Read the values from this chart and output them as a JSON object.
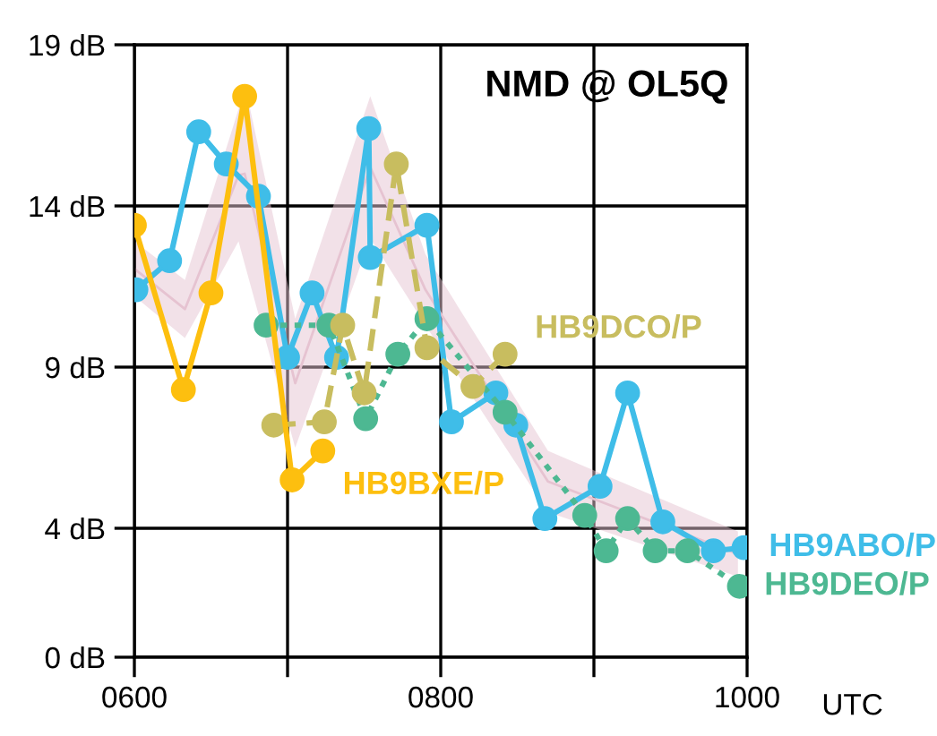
{
  "chart_data": {
    "type": "line",
    "title": "NMD @ OL5Q",
    "xlabel": "UTC",
    "xlim": [
      600,
      1000
    ],
    "xticks": [
      {
        "value": 600,
        "label": "0600"
      },
      {
        "value": 700,
        "label": null
      },
      {
        "value": 800,
        "label": "0800"
      },
      {
        "value": 900,
        "label": null
      },
      {
        "value": 1000,
        "label": "1000"
      }
    ],
    "ylim": [
      0,
      19
    ],
    "yticks": [
      {
        "value": 0,
        "label": "0 dB"
      },
      {
        "value": 4,
        "label": "4 dB"
      },
      {
        "value": 9,
        "label": "9 dB"
      },
      {
        "value": 14,
        "label": "14 dB"
      },
      {
        "value": 19,
        "label": "19 dB"
      }
    ],
    "grid": true,
    "legend": false,
    "marker": "circle",
    "series": [
      {
        "type": "line",
        "color": "#e6c3d1",
        "marker": "none",
        "line_style": "solid",
        "x": [
          600,
          633,
          668,
          672,
          705,
          754,
          790,
          870,
          994
        ],
        "values": [
          12.05,
          10.8,
          14.95,
          15.0,
          8.5,
          15.2,
          11.4,
          5.45,
          3.2
        ],
        "lower": [
          11.2,
          9.9,
          12.9,
          12.2,
          6.5,
          13.0,
          10.3,
          4.5,
          2.5
        ],
        "upper": [
          12.9,
          11.7,
          17.0,
          17.8,
          10.5,
          17.4,
          12.5,
          6.4,
          3.9
        ]
      },
      {
        "name": "HB9ABO/P",
        "color": "#3fbde8",
        "line_style": "solid",
        "x": [
          601,
          623,
          642,
          660,
          681,
          700,
          716,
          732,
          753,
          754,
          791,
          807,
          836,
          849,
          868,
          904,
          922,
          945,
          978,
          998
        ],
        "values": [
          11.4,
          12.3,
          16.3,
          15.3,
          14.3,
          9.3,
          11.3,
          9.3,
          16.4,
          12.4,
          13.4,
          7.3,
          8.2,
          7.2,
          4.3,
          5.3,
          8.2,
          4.2,
          3.3,
          3.4
        ]
      },
      {
        "name": "HB9DEO/P",
        "color": "#4db892",
        "line_style": "dotted",
        "x": [
          686,
          727,
          751,
          772,
          791,
          842,
          894,
          908,
          922,
          940,
          961,
          995
        ],
        "values": [
          10.3,
          10.3,
          7.4,
          9.4,
          10.5,
          7.6,
          4.4,
          3.3,
          4.3,
          3.3,
          3.3,
          2.2
        ]
      },
      {
        "name": "HB9DCO/P",
        "color": "#c8bd5f",
        "line_style": "dashed",
        "x": [
          691,
          724,
          736,
          750,
          771,
          791,
          821,
          842
        ],
        "values": [
          7.2,
          7.3,
          10.3,
          8.2,
          15.3,
          9.6,
          8.4,
          9.4
        ]
      },
      {
        "name": "HB9BXE/P",
        "color": "#fdbf0f",
        "line_style": "solid",
        "x": [
          600,
          632,
          650,
          672,
          703,
          723
        ],
        "values": [
          13.4,
          8.3,
          11.3,
          17.4,
          5.5,
          6.4
        ]
      }
    ]
  }
}
